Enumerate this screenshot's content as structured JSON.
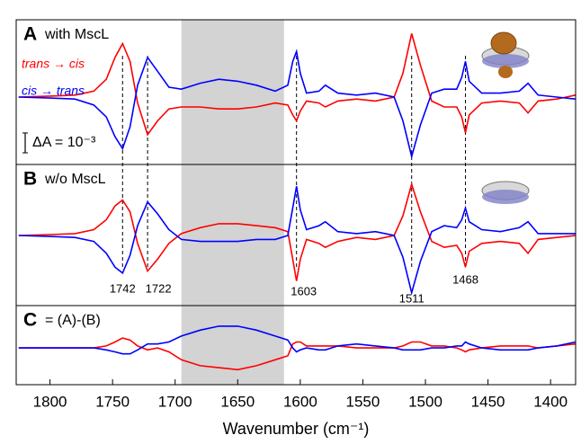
{
  "chart_data": {
    "type": "line",
    "x_label": "Wavenumber (cm⁻¹)",
    "xlim": [
      1827,
      1380
    ],
    "xticks": [
      1800,
      1750,
      1700,
      1650,
      1600,
      1550,
      1500,
      1450,
      1400
    ],
    "shaded_region": [
      1695,
      1613
    ],
    "peaks": [
      1742,
      1722,
      1603,
      1511,
      1468
    ],
    "scale_bar": {
      "value": 1,
      "label": "ΔA = 10⁻³"
    },
    "x": [
      1825,
      1800,
      1780,
      1765,
      1755,
      1748,
      1742,
      1736,
      1730,
      1722,
      1714,
      1705,
      1695,
      1680,
      1665,
      1650,
      1635,
      1620,
      1610,
      1606,
      1603,
      1600,
      1595,
      1585,
      1580,
      1570,
      1555,
      1540,
      1525,
      1518,
      1511,
      1504,
      1495,
      1485,
      1475,
      1471,
      1468,
      1465,
      1455,
      1440,
      1425,
      1418,
      1410,
      1395,
      1380
    ],
    "panels": [
      {
        "label": "A",
        "title": "with MscL",
        "ylim": [
          -3.4,
          3.9
        ],
        "series": [
          {
            "name": "trans → cis",
            "color": "#ff0000",
            "values": [
              0,
              0.05,
              0.1,
              0.3,
              0.9,
              2.0,
              2.7,
              1.8,
              -0.3,
              -1.9,
              -1.2,
              -0.6,
              -0.5,
              -0.5,
              -0.6,
              -0.6,
              -0.5,
              -0.3,
              -0.4,
              -0.9,
              -1.2,
              -0.7,
              -0.2,
              -0.3,
              -0.5,
              -0.2,
              -0.1,
              -0.2,
              0.0,
              1.2,
              3.2,
              1.6,
              -0.2,
              -0.5,
              -0.5,
              -1.0,
              -1.8,
              -0.9,
              -0.3,
              -0.2,
              -0.3,
              -0.8,
              -0.2,
              -0.1,
              0.1
            ]
          },
          {
            "name": "cis → trans",
            "color": "#0000ff",
            "values": [
              0,
              -0.05,
              -0.1,
              -0.4,
              -1.0,
              -2.0,
              -2.6,
              -1.5,
              0.6,
              2.0,
              1.3,
              0.5,
              0.4,
              0.7,
              0.9,
              0.8,
              0.6,
              0.3,
              0.6,
              1.8,
              2.3,
              1.2,
              0.2,
              0.3,
              0.6,
              0.2,
              0.1,
              0.2,
              0.0,
              -1.2,
              -3.0,
              -1.4,
              0.2,
              0.4,
              0.4,
              1.0,
              1.8,
              0.8,
              0.2,
              0.2,
              0.3,
              0.7,
              0.1,
              0.0,
              -0.1
            ]
          }
        ]
      },
      {
        "label": "B",
        "title": "w/o MscL",
        "ylim": [
          -3.55,
          3.6
        ],
        "series": [
          {
            "color": "#ff0000",
            "values": [
              0,
              0.05,
              0.1,
              0.3,
              0.8,
              1.5,
              1.8,
              1.2,
              -0.4,
              -1.8,
              -1.2,
              -0.4,
              0.1,
              0.4,
              0.6,
              0.6,
              0.5,
              0.4,
              0.2,
              -1.2,
              -2.3,
              -1.2,
              -0.2,
              -0.4,
              -0.6,
              -0.3,
              -0.1,
              -0.2,
              0.0,
              1.0,
              2.6,
              1.2,
              -0.3,
              -0.6,
              -0.5,
              -0.9,
              -1.6,
              -0.8,
              -0.4,
              -0.3,
              -0.4,
              -0.9,
              -0.2,
              -0.1,
              0.0
            ]
          },
          {
            "color": "#0000ff",
            "values": [
              0,
              -0.05,
              -0.1,
              -0.3,
              -0.9,
              -1.6,
              -1.9,
              -1.0,
              0.5,
              1.7,
              1.1,
              0.3,
              -0.2,
              -0.3,
              -0.3,
              -0.3,
              -0.2,
              -0.2,
              0.0,
              1.4,
              2.5,
              1.3,
              0.3,
              0.5,
              0.7,
              0.2,
              0.1,
              0.2,
              0.0,
              -1.1,
              -2.9,
              -1.3,
              0.2,
              0.5,
              0.4,
              0.8,
              1.4,
              0.7,
              0.3,
              0.2,
              0.4,
              0.7,
              0.1,
              0.1,
              0.1
            ]
          }
        ]
      },
      {
        "label": "C",
        "title": "= (A)-(B)",
        "ylim": [
          -1.86,
          2.14
        ],
        "series": [
          {
            "color": "#ff0000",
            "values": [
              0,
              0.0,
              0.0,
              0.0,
              0.1,
              0.3,
              0.5,
              0.4,
              0.1,
              -0.1,
              0.0,
              -0.2,
              -0.6,
              -0.9,
              -1.0,
              -1.1,
              -0.9,
              -0.6,
              -0.4,
              0.2,
              0.3,
              0.3,
              0.1,
              0.1,
              0.1,
              0.1,
              0.0,
              0.0,
              0.0,
              0.1,
              0.3,
              0.3,
              0.1,
              0.1,
              0.0,
              -0.1,
              -0.2,
              -0.1,
              0.0,
              0.1,
              0.1,
              0.1,
              0.0,
              0.1,
              0.2
            ]
          },
          {
            "color": "#0000ff",
            "values": [
              0,
              0.0,
              0.0,
              0.0,
              -0.1,
              -0.2,
              -0.3,
              -0.3,
              -0.1,
              0.2,
              0.2,
              0.3,
              0.6,
              0.9,
              1.1,
              1.1,
              0.9,
              0.6,
              0.4,
              0.0,
              -0.2,
              -0.1,
              0.0,
              -0.1,
              -0.1,
              0.1,
              0.2,
              0.1,
              0.0,
              -0.1,
              -0.1,
              -0.1,
              0.0,
              0.0,
              0.1,
              0.1,
              0.3,
              0.2,
              0.0,
              -0.1,
              -0.1,
              -0.1,
              0.0,
              0.1,
              0.3
            ]
          }
        ]
      }
    ]
  }
}
